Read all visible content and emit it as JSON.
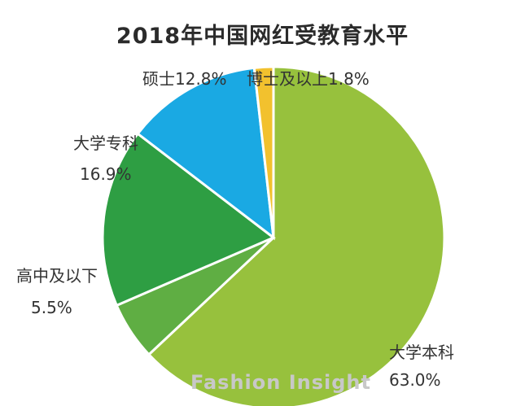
{
  "chart_data": {
    "type": "pie",
    "title": "2018年中国网红受教育水平",
    "slices": [
      {
        "label": "大学本科",
        "value": 63.0,
        "value_label": "63.0%",
        "color": "#97c13d"
      },
      {
        "label": "高中及以下",
        "value": 5.5,
        "value_label": "5.5%",
        "color": "#5fae43"
      },
      {
        "label": "大学专科",
        "value": 16.9,
        "value_label": "16.9%",
        "color": "#2e9e43"
      },
      {
        "label": "硕士",
        "value": 12.8,
        "value_label": "12.8%",
        "color": "#1aa9e3"
      },
      {
        "label": "博士及以上",
        "value": 1.8,
        "value_label": "1.8%",
        "color": "#f2c12e"
      }
    ]
  },
  "watermark": "Fashion Insight"
}
